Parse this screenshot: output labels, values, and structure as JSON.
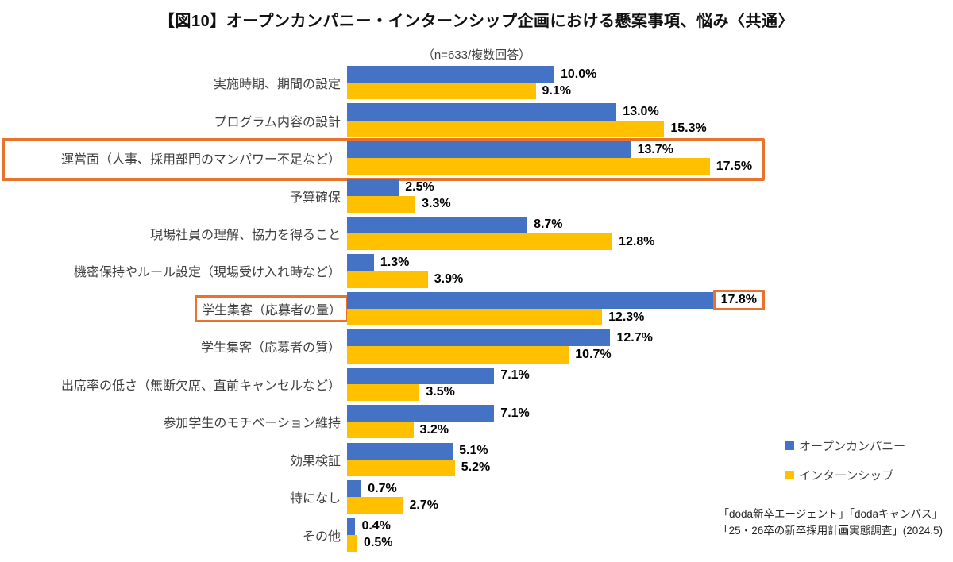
{
  "title": "【図10】オープンカンパニー・インターンシップ企画における懸案事項、悩み〈共通〉",
  "subtitle": "（n=633/複数回答）",
  "colors": {
    "open_company_blue": "#4472C4",
    "internship_yellow": "#FFC000",
    "highlight_orange": "#E8732C",
    "axis_gray": "#C9C9C9"
  },
  "legend": [
    {
      "label": "オープンカンパニー",
      "color": "#4472C4"
    },
    {
      "label": "インターンシップ",
      "color": "#FFC000"
    }
  ],
  "source": {
    "line1": "「doda新卒エージェント」「dodaキャンパス」",
    "line2": "「25・26卒の新卒採用計画実態調査」(2024.5)"
  },
  "chart_data": {
    "type": "bar",
    "orientation": "horizontal",
    "title": "【図10】オープンカンパニー・インターンシップ企画における懸案事項、悩み〈共通〉",
    "subtitle": "（n=633/複数回答）",
    "value_suffix": "%",
    "xlim": [
      0,
      20
    ],
    "grid": false,
    "legend_position": "right-bottom",
    "categories": [
      "実施時期、期間の設定",
      "プログラム内容の設計",
      "運営面（人事、採用部門のマンパワー不足など）",
      "予算確保",
      "現場社員の理解、協力を得ること",
      "機密保持やルール設定（現場受け入れ時など）",
      "学生集客（応募者の量）",
      "学生集客（応募者の質）",
      "出席率の低さ（無断欠席、直前キャンセルなど）",
      "参加学生のモチベーション維持",
      "効果検証",
      "特になし",
      "その他"
    ],
    "series": [
      {
        "name": "オープンカンパニー",
        "color": "#4472C4",
        "values": [
          10.0,
          13.0,
          13.7,
          2.5,
          8.7,
          1.3,
          17.8,
          12.7,
          7.1,
          7.1,
          5.1,
          0.7,
          0.4
        ]
      },
      {
        "name": "インターンシップ",
        "color": "#FFC000",
        "values": [
          9.1,
          15.3,
          17.5,
          3.3,
          12.8,
          3.9,
          12.3,
          10.7,
          3.5,
          3.2,
          5.2,
          2.7,
          0.5
        ]
      }
    ],
    "annotations": {
      "row_box_category_index": 2,
      "label_box_category_index": 6,
      "value_box": {
        "category_index": 6,
        "series_index": 0
      }
    }
  }
}
